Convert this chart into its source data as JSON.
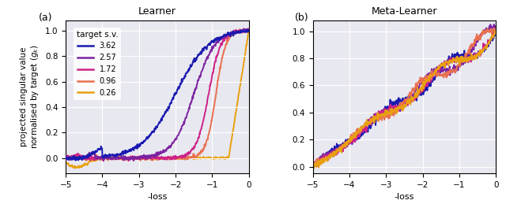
{
  "title_left": "Learner",
  "title_right": "Meta-Learner",
  "label_left": "(a)",
  "label_right": "(b)",
  "ylabel": "projected singular value\nnormalised by target ($g_k$)",
  "xlabel": "-loss",
  "legend_title": "target s.v.",
  "legend_labels": [
    "3.62",
    "2.57",
    "1.72",
    "0.96",
    "0.26"
  ],
  "colors": [
    "#1a1ab0",
    "#7b22a0",
    "#cc2288",
    "#e87050",
    "#e8a010"
  ],
  "xlim": [
    -5,
    0
  ],
  "ylim_left": [
    -0.12,
    1.08
  ],
  "ylim_right": [
    -0.05,
    1.08
  ],
  "bg_color": "#e8e8f0",
  "fig_bg": "#ffffff",
  "lw": 1.4
}
